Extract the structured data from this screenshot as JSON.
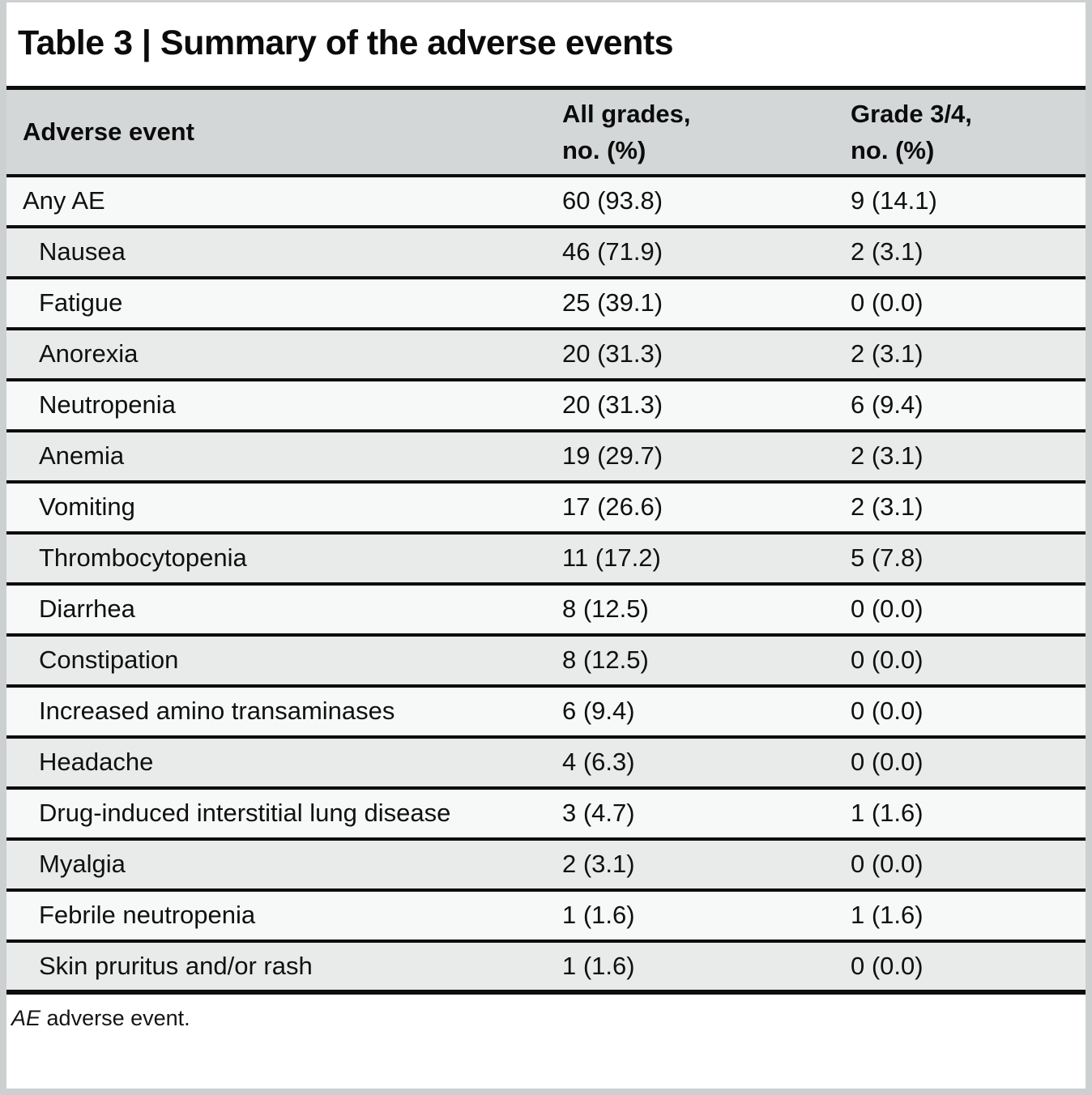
{
  "title": "Table 3 | Summary of the adverse events",
  "table": {
    "columns": [
      {
        "label": "Adverse event"
      },
      {
        "label": "All grades,\nno. (%)"
      },
      {
        "label": "Grade 3/4,\nno. (%)"
      }
    ],
    "rows": [
      {
        "event": "Any AE",
        "all_grades": "60 (93.8)",
        "grade_3_4": "9 (14.1)",
        "indent": false
      },
      {
        "event": "Nausea",
        "all_grades": "46 (71.9)",
        "grade_3_4": "2 (3.1)",
        "indent": true
      },
      {
        "event": "Fatigue",
        "all_grades": "25 (39.1)",
        "grade_3_4": "0 (0.0)",
        "indent": true
      },
      {
        "event": "Anorexia",
        "all_grades": "20 (31.3)",
        "grade_3_4": "2 (3.1)",
        "indent": true
      },
      {
        "event": "Neutropenia",
        "all_grades": "20 (31.3)",
        "grade_3_4": "6 (9.4)",
        "indent": true
      },
      {
        "event": "Anemia",
        "all_grades": "19 (29.7)",
        "grade_3_4": "2 (3.1)",
        "indent": true
      },
      {
        "event": "Vomiting",
        "all_grades": "17 (26.6)",
        "grade_3_4": "2 (3.1)",
        "indent": true
      },
      {
        "event": "Thrombocytopenia",
        "all_grades": "11 (17.2)",
        "grade_3_4": "5 (7.8)",
        "indent": true
      },
      {
        "event": "Diarrhea",
        "all_grades": "8 (12.5)",
        "grade_3_4": "0 (0.0)",
        "indent": true
      },
      {
        "event": "Constipation",
        "all_grades": "8 (12.5)",
        "grade_3_4": "0 (0.0)",
        "indent": true
      },
      {
        "event": "Increased amino transaminases",
        "all_grades": "6 (9.4)",
        "grade_3_4": "0 (0.0)",
        "indent": true
      },
      {
        "event": "Headache",
        "all_grades": "4 (6.3)",
        "grade_3_4": "0 (0.0)",
        "indent": true
      },
      {
        "event": "Drug-induced interstitial lung disease",
        "all_grades": "3 (4.7)",
        "grade_3_4": "1 (1.6)",
        "indent": true
      },
      {
        "event": "Myalgia",
        "all_grades": "2 (3.1)",
        "grade_3_4": "0 (0.0)",
        "indent": true
      },
      {
        "event": "Febrile neutropenia",
        "all_grades": "1 (1.6)",
        "grade_3_4": "1 (1.6)",
        "indent": true
      },
      {
        "event": "Skin pruritus and/or rash",
        "all_grades": "1 (1.6)",
        "grade_3_4": "0 (0.0)",
        "indent": true
      }
    ]
  },
  "footnote": {
    "abbr": "AE",
    "text": " adverse event."
  },
  "colors": {
    "header_bg": "#d4d7d7",
    "row_shaded": "#e9ebeb",
    "row_plain": "#f7f8f8",
    "border": "#0d0d0d",
    "frame": "#ccd0d0"
  }
}
